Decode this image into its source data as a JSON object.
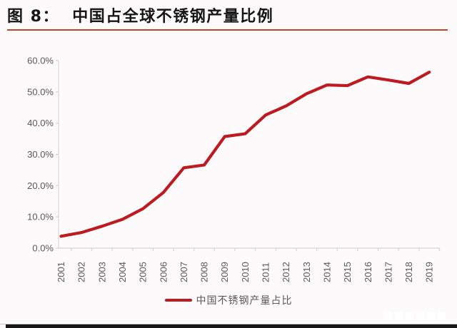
{
  "header": {
    "title": "图 8：  中国占全球不锈钢产量比例"
  },
  "legend": {
    "label": "中国不锈钢产量占比"
  },
  "colors": {
    "line": "#be1b20",
    "title_rule": "#c5442e",
    "axis": "#d7d5d8",
    "tick_label": "#595959",
    "background": "#fcfafb",
    "bottom_bar": "#171717"
  },
  "chart_data": {
    "type": "line",
    "title": "中国占全球不锈钢产量比例",
    "categories": [
      "2001",
      "2002",
      "2003",
      "2004",
      "2005",
      "2006",
      "2007",
      "2008",
      "2009",
      "2010",
      "2011",
      "2012",
      "2013",
      "2014",
      "2015",
      "2016",
      "2017",
      "2018",
      "2019"
    ],
    "series": [
      {
        "name": "中国不锈钢产量占比",
        "values": [
          3.8,
          5.0,
          7.0,
          9.2,
          12.6,
          17.8,
          25.7,
          26.6,
          35.7,
          36.6,
          42.6,
          45.5,
          49.4,
          52.2,
          52.0,
          54.8,
          53.8,
          52.7,
          56.3
        ]
      }
    ],
    "xlabel": "",
    "ylabel": "",
    "ylim": [
      0,
      60
    ],
    "y_tick_labels": [
      "0.0%",
      "10.0%",
      "20.0%",
      "30.0%",
      "40.0%",
      "50.0%",
      "60.0%"
    ],
    "grid": false,
    "legend_position": "bottom"
  }
}
